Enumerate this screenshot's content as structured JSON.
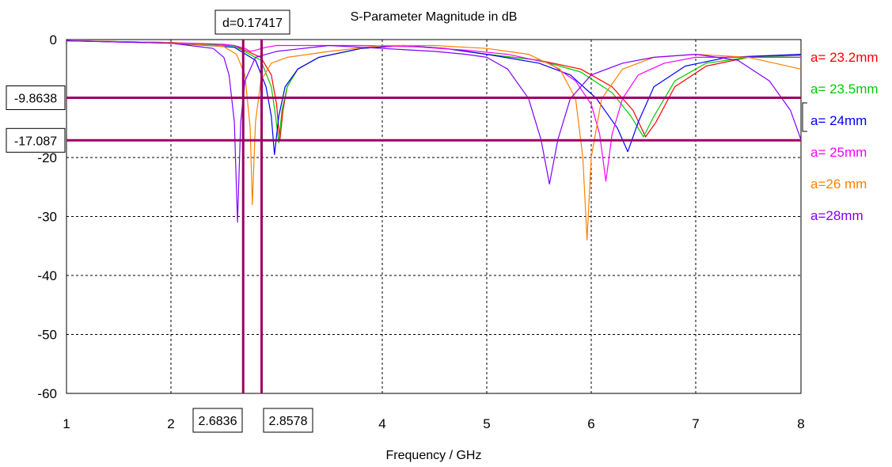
{
  "chart_data": {
    "type": "line",
    "title": "S-Parameter Magnitude in dB",
    "xlabel": "Frequency / GHz",
    "ylabel": "",
    "xlim": [
      1,
      8
    ],
    "ylim": [
      -60,
      0
    ],
    "xticks": [
      "1",
      "2",
      "4",
      "5",
      "6",
      "7",
      "8"
    ],
    "yticks": [
      "0",
      "-20",
      "-30",
      "-40",
      "-50",
      "-60"
    ],
    "grid": true,
    "legend_position": "right",
    "series": [
      {
        "name": "a= 23.2mm",
        "color": "#ff0000",
        "x": [
          1.0,
          2.0,
          2.6,
          2.85,
          2.95,
          3.0,
          3.03,
          3.06,
          3.1,
          3.2,
          3.4,
          3.8,
          4.2,
          4.6,
          5.0,
          5.5,
          5.9,
          6.2,
          6.4,
          6.52,
          6.62,
          6.8,
          7.1,
          7.5,
          8.0
        ],
        "y": [
          -0.2,
          -0.5,
          -1.0,
          -3.0,
          -6.0,
          -11.0,
          -17.2,
          -12.0,
          -8.0,
          -5.0,
          -3.0,
          -1.5,
          -1.0,
          -1.5,
          -2.5,
          -3.5,
          -5.0,
          -8.0,
          -12.0,
          -16.5,
          -14.0,
          -8.0,
          -4.5,
          -3.0,
          -2.5
        ]
      },
      {
        "name": "a= 23.5mm",
        "color": "#00cc00",
        "x": [
          1.0,
          2.0,
          2.6,
          2.85,
          2.95,
          2.99,
          3.02,
          3.05,
          3.1,
          3.2,
          3.4,
          3.8,
          4.2,
          4.6,
          5.0,
          5.5,
          5.9,
          6.2,
          6.38,
          6.5,
          6.6,
          6.8,
          7.1,
          7.5,
          8.0
        ],
        "y": [
          -0.2,
          -0.5,
          -1.1,
          -3.5,
          -8.0,
          -13.0,
          -17.5,
          -12.0,
          -8.0,
          -5.0,
          -3.0,
          -1.5,
          -1.0,
          -1.5,
          -2.5,
          -3.5,
          -5.5,
          -9.0,
          -13.0,
          -16.5,
          -13.0,
          -7.0,
          -4.0,
          -3.0,
          -2.7
        ]
      },
      {
        "name": "a= 24mm",
        "color": "#0000ff",
        "x": [
          1.0,
          2.0,
          2.6,
          2.8,
          2.9,
          2.95,
          2.98,
          3.02,
          3.08,
          3.2,
          3.4,
          3.8,
          4.2,
          4.6,
          5.0,
          5.5,
          5.8,
          6.05,
          6.25,
          6.35,
          6.45,
          6.6,
          6.9,
          7.3,
          8.0
        ],
        "y": [
          -0.2,
          -0.6,
          -1.3,
          -3.5,
          -8.0,
          -13.0,
          -19.5,
          -13.0,
          -8.0,
          -5.0,
          -3.0,
          -1.5,
          -1.0,
          -1.5,
          -2.5,
          -4.0,
          -6.0,
          -10.0,
          -15.0,
          -19.0,
          -14.0,
          -8.0,
          -4.5,
          -3.0,
          -2.5
        ]
      },
      {
        "name": "a= 25mm",
        "color": "#ff00ff",
        "x": [
          1.0,
          2.0,
          2.5,
          2.6,
          2.7,
          2.75,
          2.8,
          2.9,
          3.0,
          3.3,
          3.8,
          4.3,
          4.8,
          5.2,
          5.6,
          5.85,
          6.0,
          6.08,
          6.14,
          6.2,
          6.3,
          6.45,
          6.7,
          7.0,
          8.0
        ],
        "y": [
          -0.2,
          -0.5,
          -0.8,
          -1.0,
          -1.5,
          -2.0,
          -1.8,
          -1.3,
          -1.0,
          -1.0,
          -1.0,
          -1.2,
          -1.8,
          -2.5,
          -4.0,
          -7.0,
          -11.0,
          -16.0,
          -24.0,
          -16.0,
          -10.0,
          -6.0,
          -4.0,
          -3.0,
          -3.0
        ]
      },
      {
        "name": "a=26 mm",
        "color": "#ff8000",
        "x": [
          1.0,
          2.0,
          2.5,
          2.62,
          2.7,
          2.75,
          2.77,
          2.8,
          2.85,
          2.95,
          3.1,
          3.5,
          4.0,
          4.5,
          5.0,
          5.4,
          5.7,
          5.85,
          5.92,
          5.96,
          6.0,
          6.1,
          6.3,
          6.6,
          7.0,
          7.5,
          8.0
        ],
        "y": [
          -0.2,
          -0.5,
          -1.2,
          -2.5,
          -6.0,
          -15.0,
          -28.0,
          -14.0,
          -7.0,
          -4.0,
          -3.0,
          -2.0,
          -1.0,
          -1.0,
          -1.5,
          -2.5,
          -5.0,
          -10.0,
          -20.0,
          -34.0,
          -20.0,
          -10.0,
          -5.0,
          -3.0,
          -2.5,
          -3.0,
          -5.0
        ]
      },
      {
        "name": "a=28mm",
        "color": "#8000ff",
        "x": [
          1.0,
          2.0,
          2.4,
          2.5,
          2.55,
          2.6,
          2.63,
          2.66,
          2.7,
          2.8,
          3.0,
          3.5,
          4.0,
          4.5,
          4.8,
          5.0,
          5.2,
          5.4,
          5.52,
          5.6,
          5.68,
          5.8,
          6.0,
          6.3,
          6.6,
          7.0,
          7.4,
          7.7,
          7.9,
          8.0
        ],
        "y": [
          -0.2,
          -0.6,
          -1.5,
          -3.0,
          -6.0,
          -14.0,
          -31.0,
          -14.0,
          -7.0,
          -3.0,
          -2.0,
          -1.0,
          -1.5,
          -2.0,
          -2.5,
          -3.0,
          -5.0,
          -10.0,
          -17.0,
          -24.5,
          -17.0,
          -10.0,
          -6.0,
          -4.0,
          -3.0,
          -2.5,
          -3.5,
          -7.0,
          -12.0,
          -17.0
        ]
      }
    ],
    "markers": {
      "hlines": [
        {
          "value": -9.8638,
          "label": "-9.8638"
        },
        {
          "value": -17.087,
          "label": "-17.087"
        }
      ],
      "vlines": [
        {
          "value": 2.6836,
          "label": "2.6836"
        },
        {
          "value": 2.8578,
          "label": "2.8578"
        }
      ],
      "delta_label": "d=0.17417",
      "marker_color": "#990066"
    }
  }
}
